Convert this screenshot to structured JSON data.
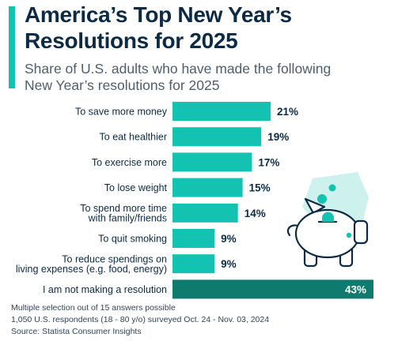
{
  "header": {
    "title_line1": "America’s Top New Year’s",
    "title_line2": "Resolutions for 2025",
    "subtitle_line1": "Share of U.S. adults who have made the following",
    "subtitle_line2": "New Year’s resolutions for 2025"
  },
  "chart_data": {
    "type": "bar",
    "orientation": "horizontal",
    "unit": "%",
    "categories": [
      [
        "To save more money"
      ],
      [
        "To eat healthier"
      ],
      [
        "To exercise more"
      ],
      [
        "To lose weight"
      ],
      [
        "To spend more time",
        "with family/friends"
      ],
      [
        "To quit smoking"
      ],
      [
        "To reduce spendings on",
        "living expenses (e.g. food, energy)"
      ],
      [
        "I am not making a resolution"
      ]
    ],
    "values": [
      21,
      19,
      17,
      15,
      14,
      9,
      9,
      43
    ],
    "data_labels": [
      "21%",
      "19%",
      "17%",
      "15%",
      "14%",
      "9%",
      "9%",
      "43%"
    ],
    "highlight_index": 7,
    "xlim": [
      0,
      43
    ]
  },
  "footer": {
    "line1": "Multiple selection out of 15 answers possible",
    "line2": "1,050 U.S. respondents (18 - 80 y/o) surveyed Oct. 24 - Nov. 03, 2024",
    "line3": "Source: Statista Consumer Insights"
  },
  "colors": {
    "bar": "#13c2b0",
    "highlight_bar": "#0f7b6e",
    "highlight_label": "#ffffff",
    "value_label": "#0c2a44",
    "category_label": "#0c2a44",
    "title": "#0c2a44",
    "accent": "#13c2b0"
  },
  "icons": [
    "piggy-bank-icon",
    "coin-icon"
  ]
}
